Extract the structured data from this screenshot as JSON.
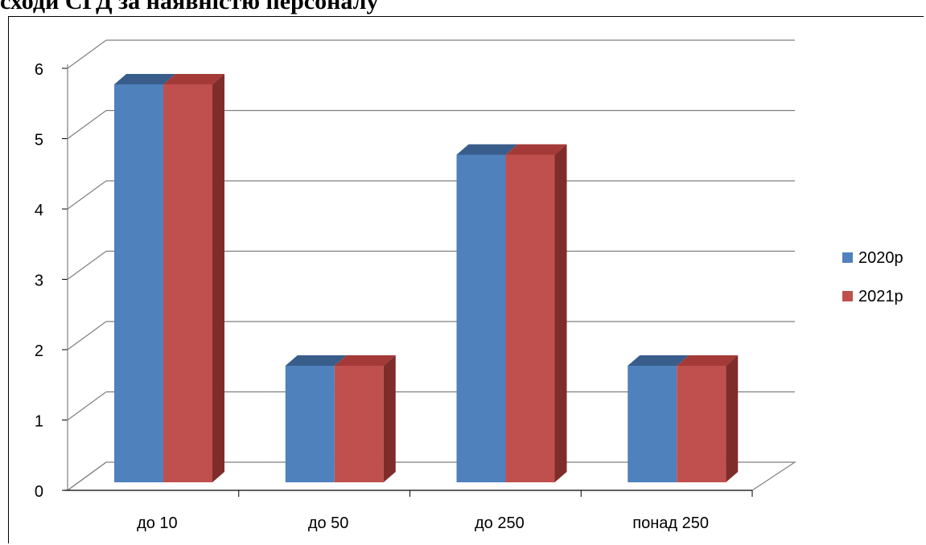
{
  "heading": "сходи СГД за наявністю персоналу",
  "colors": {
    "series_2020": "#4f81bd",
    "series_2020_top": "#385d8a",
    "series_2021": "#c0504d",
    "series_2021_top": "#a33a37",
    "series_2021_side": "#7f2d2b",
    "gridline": "#7f7f7f"
  },
  "chart_data": {
    "type": "bar",
    "categories": [
      "до 10",
      "до 50",
      "до 250",
      "понад 250"
    ],
    "series": [
      {
        "name": "2020р",
        "values": [
          6,
          2,
          5,
          2
        ]
      },
      {
        "name": "2021р",
        "values": [
          6,
          2,
          5,
          2
        ]
      }
    ],
    "yticks": [
      "0",
      "1",
      "2",
      "3",
      "4",
      "5",
      "6"
    ],
    "ylim": [
      0,
      6
    ],
    "grid": true,
    "legend_position": "right",
    "title": "",
    "xlabel": "",
    "ylabel": ""
  }
}
